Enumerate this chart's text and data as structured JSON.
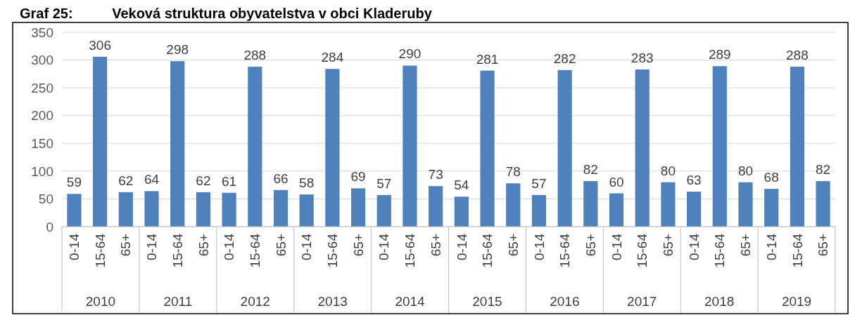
{
  "chart_data": {
    "type": "bar",
    "title": "Graf 25:          Veková struktura obyvatelstva v obci Kladeruby",
    "categories": [
      "0-14",
      "15-64",
      "65+",
      "0-14",
      "15-64",
      "65+",
      "0-14",
      "15-64",
      "65+",
      "0-14",
      "15-64",
      "65+",
      "0-14",
      "15-64",
      "65+",
      "0-14",
      "15-64",
      "65+",
      "0-14",
      "15-64",
      "65+",
      "0-14",
      "15-64",
      "65+",
      "0-14",
      "15-64",
      "65+",
      "0-14",
      "15-64",
      "65+"
    ],
    "values": [
      59,
      306,
      62,
      64,
      298,
      62,
      61,
      288,
      66,
      58,
      284,
      69,
      57,
      290,
      73,
      54,
      281,
      78,
      57,
      282,
      82,
      60,
      283,
      80,
      63,
      289,
      80,
      68,
      288,
      82
    ],
    "color": "#4f81bd",
    "ylim": [
      0,
      350
    ],
    "yticks": [
      0,
      50,
      100,
      150,
      200,
      250,
      300,
      350
    ],
    "grid": "y",
    "data_labels": true,
    "annotations": [
      "2010",
      "2011",
      "2012",
      "2013",
      "2014",
      "2015",
      "2016",
      "2017",
      "2018",
      "2019"
    ]
  }
}
